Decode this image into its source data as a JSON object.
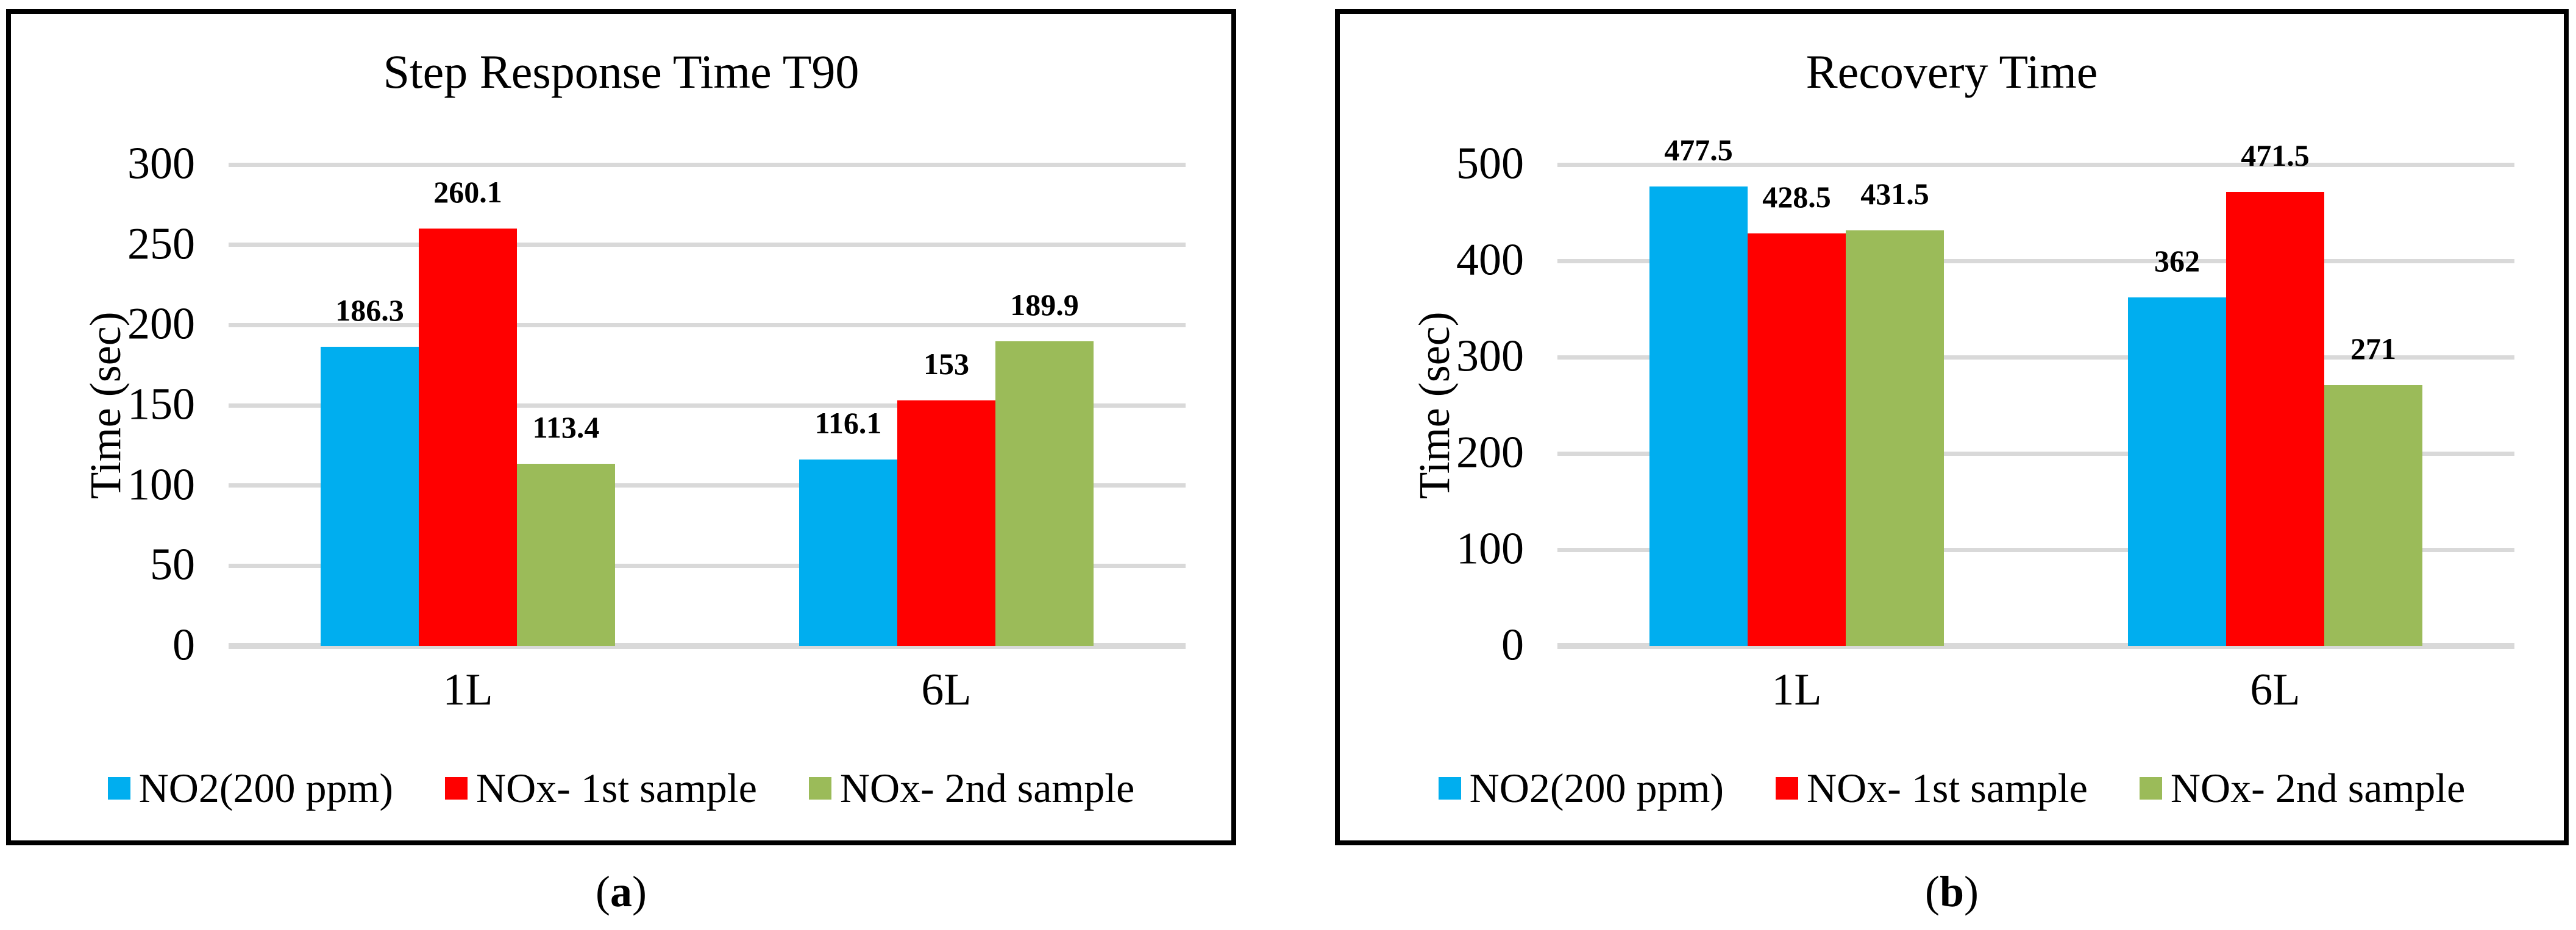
{
  "figure": {
    "captions": [
      {
        "open": "(",
        "letter": "a",
        "close": ")"
      },
      {
        "open": "(",
        "letter": "b",
        "close": ")"
      }
    ]
  },
  "colors": {
    "series_blue": "#00AEEF",
    "series_red": "#FF0000",
    "series_green": "#9BBB59",
    "gridline": "#D9D9D9",
    "panel_border": "#000000",
    "text": "#000000"
  },
  "chart_data": [
    {
      "type": "bar",
      "title": "Step Response Time T90",
      "ylabel": "Time (sec)",
      "xlabel": "",
      "categories": [
        "1L",
        "6L"
      ],
      "series": [
        {
          "name": "NO2(200 ppm)",
          "color": "#00AEEF",
          "values": [
            186.3,
            116.1
          ],
          "labels": [
            "186.3",
            "116.1"
          ]
        },
        {
          "name": "NOx- 1st sample",
          "color": "#FF0000",
          "values": [
            260.1,
            153
          ],
          "labels": [
            "260.1",
            "153"
          ]
        },
        {
          "name": "NOx- 2nd sample",
          "color": "#9BBB59",
          "values": [
            113.4,
            189.9
          ],
          "labels": [
            "113.4",
            "189.9"
          ]
        }
      ],
      "ylim": [
        0,
        300
      ],
      "yticks": [
        0,
        50,
        100,
        150,
        200,
        250,
        300
      ],
      "grid": true,
      "legend_position": "bottom"
    },
    {
      "type": "bar",
      "title": "Recovery Time",
      "ylabel": "Time (sec)",
      "xlabel": "",
      "categories": [
        "1L",
        "6L"
      ],
      "series": [
        {
          "name": "NO2(200 ppm)",
          "color": "#00AEEF",
          "values": [
            477.5,
            362
          ],
          "labels": [
            "477.5",
            "362"
          ]
        },
        {
          "name": "NOx- 1st sample",
          "color": "#FF0000",
          "values": [
            428.5,
            471.5
          ],
          "labels": [
            "428.5",
            "471.5"
          ]
        },
        {
          "name": "NOx- 2nd sample",
          "color": "#9BBB59",
          "values": [
            431.5,
            271
          ],
          "labels": [
            "431.5",
            "271"
          ]
        }
      ],
      "ylim": [
        0,
        500
      ],
      "yticks": [
        0,
        100,
        200,
        300,
        400,
        500
      ],
      "grid": true,
      "legend_position": "bottom"
    }
  ]
}
